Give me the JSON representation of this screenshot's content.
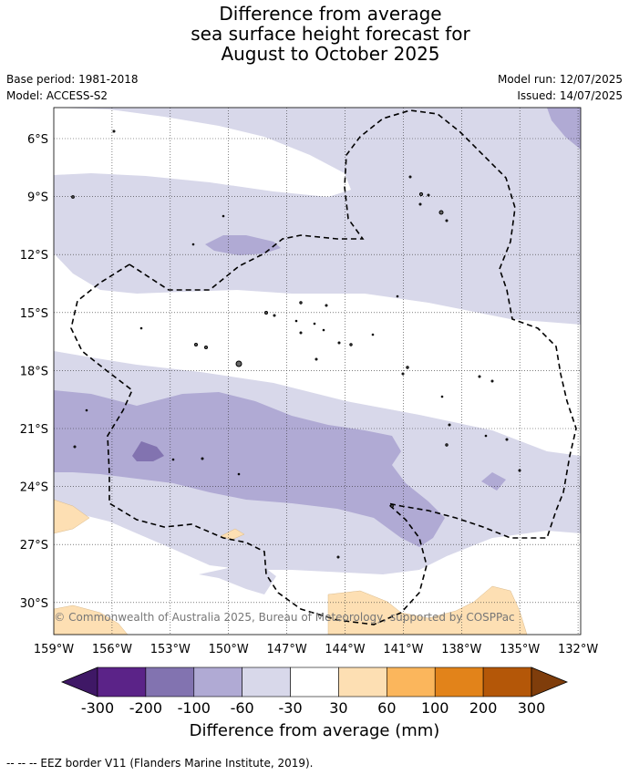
{
  "title": {
    "line1": "Difference from average",
    "line2": "sea surface height forecast for",
    "line3": "August to October 2025"
  },
  "meta": {
    "base_period": "Base period: 1981-2018",
    "model": "Model: ACCESS-S2",
    "model_run": "Model run: 12/07/2025",
    "issued": "Issued: 14/07/2025"
  },
  "map": {
    "lon_range": [
      -159.5,
      -132
    ],
    "lat_range": [
      -31.5,
      -4.3
    ],
    "lon_ticks": [
      "159°W",
      "156°W",
      "153°W",
      "150°W",
      "147°W",
      "144°W",
      "141°W",
      "138°W",
      "135°W",
      "132°W"
    ],
    "lat_ticks": [
      "6°S",
      "9°S",
      "12°S",
      "15°S",
      "18°S",
      "21°S",
      "24°S",
      "27°S",
      "30°S"
    ],
    "grid": true,
    "copyright": "© Commonwealth of Australia 2025, Bureau of Meteorology, supported by COSPPac"
  },
  "colorbar": {
    "labels": [
      "-300",
      "-200",
      "-100",
      "-60",
      "-30",
      "30",
      "60",
      "100",
      "200",
      "300"
    ],
    "colors": [
      "#3f1866",
      "#5b2388",
      "#8273b0",
      "#b0aad4",
      "#d8d8ea",
      "#ffffff",
      "#fddfb3",
      "#fbb65c",
      "#e2831a",
      "#b45708",
      "#7f3d0b"
    ],
    "title": "Difference from average (mm)"
  },
  "footnote": "--  --  -- EEZ border V11 (Flanders Marine Institute, 2019)."
}
